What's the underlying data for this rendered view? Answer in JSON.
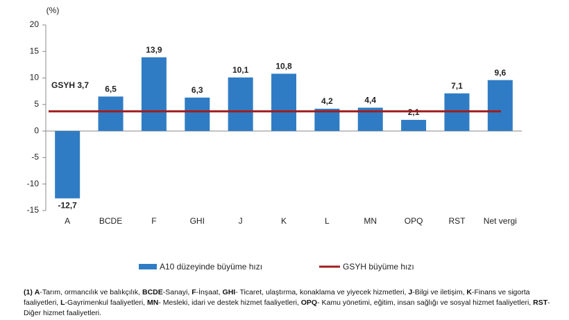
{
  "chart_data": {
    "type": "bar",
    "unit_label": "(%)",
    "categories": [
      "A",
      "BCDE",
      "F",
      "GHI",
      "J",
      "K",
      "L",
      "MN",
      "OPQ",
      "RST",
      "Net vergi"
    ],
    "series": [
      {
        "name": "A10 düzeyinde büyüme hızı",
        "color": "#2f7cc4",
        "values": [
          -12.7,
          6.5,
          13.9,
          6.3,
          10.1,
          10.8,
          4.2,
          4.4,
          2.1,
          7.1,
          9.6
        ],
        "value_labels": [
          "-12,7",
          "6,5",
          "13,9",
          "6,3",
          "10,1",
          "10,8",
          "4,2",
          "4,4",
          "2,1",
          "7,1",
          "9,6"
        ]
      }
    ],
    "reference_line": {
      "name": "GSYH büyüme hızı",
      "label": "GSYH 3,7",
      "value": 3.7,
      "color": "#a11d1d"
    },
    "ylim": [
      -15,
      20
    ],
    "yticks": [
      20,
      15,
      10,
      5,
      0,
      -5,
      -10,
      -15
    ],
    "grid": false,
    "footnote": {
      "marker": "(1)",
      "items": [
        {
          "term": "A",
          "text": "-Tarım, ormancılık ve balıkçılık, "
        },
        {
          "term": "BCDE",
          "text": "-Sanayi, "
        },
        {
          "term": "F",
          "text": "-İnşaat, "
        },
        {
          "term": "GHI",
          "text": "- Ticaret, ulaştırma, konaklama ve yiyecek hizmetleri, "
        },
        {
          "term": "J",
          "text": "-Bilgi ve iletişim, "
        },
        {
          "term": "K",
          "text": "-Finans ve sigorta faaliyetleri, "
        },
        {
          "term": "L",
          "text": "-Gayrimenkul faaliyetleri, "
        },
        {
          "term": "MN",
          "text": "- Mesleki, idari ve destek hizmet faaliyetleri, "
        },
        {
          "term": "OPQ",
          "text": "- Kamu yönetimi, eğitim, insan sağlığı ve sosyal hizmet faaliyetleri, "
        },
        {
          "term": "RST",
          "text": "- Diğer hizmet faaliyetleri."
        }
      ]
    }
  }
}
